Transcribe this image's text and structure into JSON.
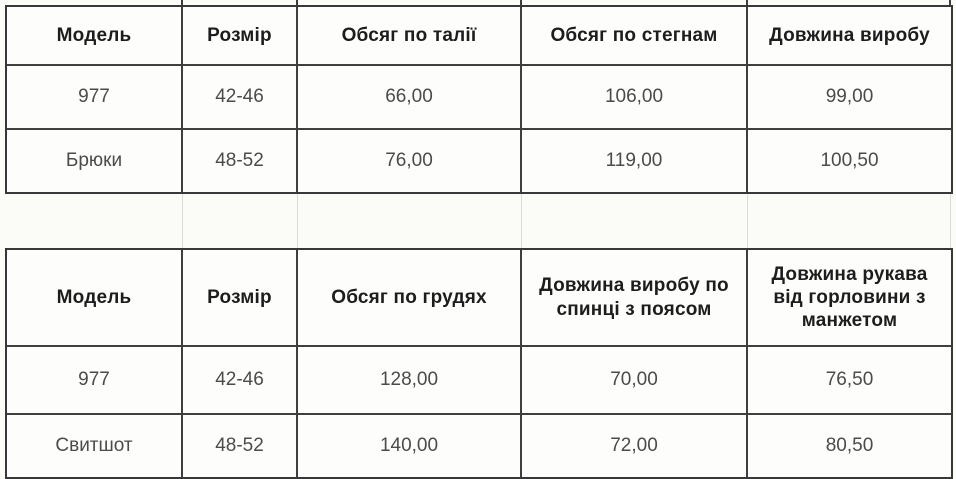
{
  "colors": {
    "page_background": "#fbfbf8",
    "cell_background": "#fdfdfb",
    "table_border": "#383838",
    "faint_gap_line": "#dbdbd8",
    "header_text": "#1d1d1d",
    "cell_text": "#4b4b4b"
  },
  "tables": [
    {
      "name": "size-table-pants",
      "headers": [
        "Модель",
        "Розмір",
        "Обсяг по талії",
        "Обсяг по стегнам",
        "Довжина виробу"
      ],
      "rows": [
        [
          "977",
          "42-46",
          "66,00",
          "106,00",
          "99,00"
        ],
        [
          "Брюки",
          "48-52",
          "76,00",
          "119,00",
          "100,50"
        ]
      ]
    },
    {
      "name": "size-table-sweatshirt",
      "headers": [
        "Модель",
        "Розмір",
        "Обсяг по грудях",
        "Довжина виробу по спинці з поясом",
        "Довжина рукава від горловини з манжетом"
      ],
      "rows": [
        [
          "977",
          "42-46",
          "128,00",
          "70,00",
          "76,50"
        ],
        [
          "Свитшот",
          "48-52",
          "140,00",
          "72,00",
          "80,50"
        ]
      ]
    }
  ]
}
